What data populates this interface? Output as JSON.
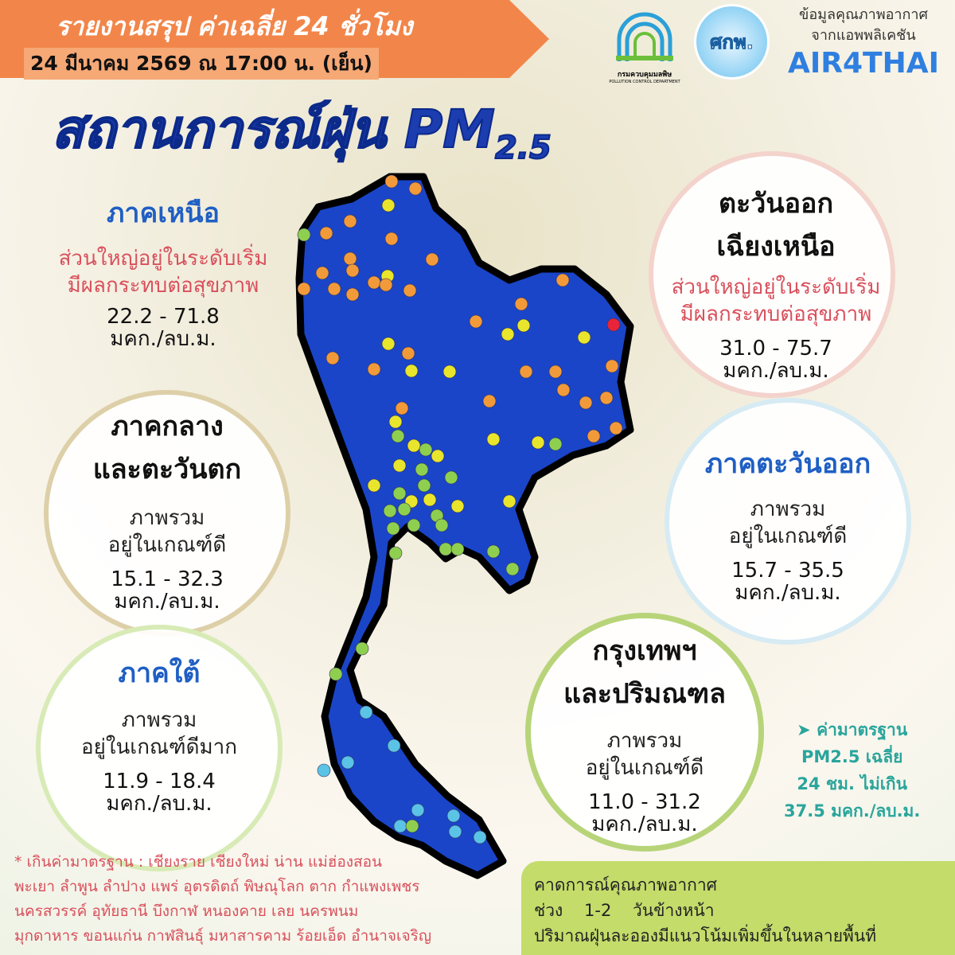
{
  "header": {
    "report_title": "รายงานสรุป ค่าเฉลี่ย 24 ชั่วโมง",
    "date_time": "24 มีนาคม 2569 ณ 17:00 น. (เย็น)",
    "main_title": "สถานการณ์ฝุ่น PM",
    "main_title_sub": "2.5"
  },
  "logos": {
    "pcd": "กรมควบคุมมลพิษ",
    "pcd_en": "POLLUTION CONTROL DEPARTMENT",
    "gistda": "ศกพ.",
    "source_line1": "ข้อมูลคุณภาพอากาศ",
    "source_line2": "จากแอพพลิเคชัน",
    "app": "AIR4THAI"
  },
  "regions": {
    "north": {
      "name": "ภาคเหนือ",
      "line1": "ส่วนใหญ่อยู่ในระดับเริ่ม",
      "line2": "มีผลกระทบต่อสุขภาพ",
      "range": "22.2 - 71.8",
      "unit": "มคก./ลบ.ม."
    },
    "northeast": {
      "name1": "ตะวันออก",
      "name2": "เฉียงเหนือ",
      "line1": "ส่วนใหญ่อยู่ในระดับเริ่ม",
      "line2": "มีผลกระทบต่อสุขภาพ",
      "range": "31.0 - 75.7",
      "unit": "มคก./ลบ.ม."
    },
    "central": {
      "name1": "ภาคกลาง",
      "name2": "และตะวันตก",
      "line1": "ภาพรวม",
      "line2": "อยู่ในเกณฑ์ดี",
      "range": "15.1 - 32.3",
      "unit": "มคก./ลบ.ม."
    },
    "east": {
      "name": "ภาคตะวันออก",
      "line1": "ภาพรวม",
      "line2": "อยู่ในเกณฑ์ดี",
      "range": "15.7 - 35.5",
      "unit": "มคก./ลบ.ม."
    },
    "south": {
      "name": "ภาคใต้",
      "line1": "ภาพรวม",
      "line2": "อยู่ในเกณฑ์ดีมาก",
      "range": "11.9 - 18.4",
      "unit": "มคก./ลบ.ม."
    },
    "bangkok": {
      "name1": "กรุงเทพฯ",
      "name2": "และปริมณฑล",
      "line1": "ภาพรวม",
      "line2": "อยู่ในเกณฑ์ดี",
      "range": "11.0 - 31.2",
      "unit": "มคก./ลบ.ม."
    }
  },
  "standard": {
    "line1": "➤ ค่ามาตรฐาน",
    "line2": "PM2.5 เฉลี่ย",
    "line3": "24 ชม. ไม่เกิน",
    "line4": "37.5 มคก./ลบ.ม."
  },
  "exceed_note": {
    "line1": "* เกินค่ามาตรฐาน :  เชียงราย เชียงใหม่ น่าน แม่ฮ่องสอน",
    "line2": "พะเยา ลำพูน ลำปาง แพร่ อุตรดิตถ์ พิษณุโลก ตาก กำแพงเพชร",
    "line3": "นครสวรรค์ อุทัยธานี บึงกาฬ หนองคาย เลย นครพนม",
    "line4": "มุกดาหาร ขอนแก่น กาฬสินธุ์ มหาสารคาม ร้อยเอ็ด อำนาจเจริญ"
  },
  "forecast": {
    "line1": "คาดการณ์คุณภาพอากาศ",
    "line2": "ช่วง    1-2    วันข้างหน้า",
    "line3": "ปริมาณฝุ่นละอองมีแนวโน้มเพิ่มขึ้นในหลายพื้นที่"
  },
  "colors": {
    "map_fill": "#1a45c8",
    "very_good": "#5bc3e6",
    "good": "#8fcf4f",
    "moderate": "#e8e52c",
    "unhealthy_sensitive": "#f29a3a",
    "unhealthy": "#e8243a"
  }
}
